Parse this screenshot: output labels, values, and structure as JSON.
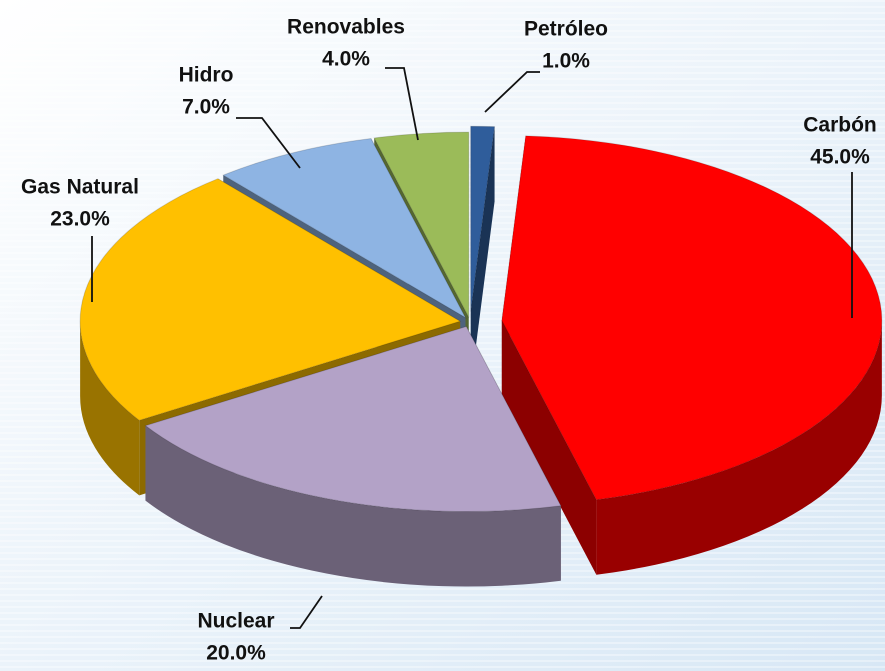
{
  "chart_data": {
    "type": "pie",
    "categories": [
      "Petróleo",
      "Carbón",
      "Nuclear",
      "Gas Natural",
      "Hidro",
      "Renovables"
    ],
    "values": [
      1,
      45,
      20,
      23,
      7,
      4
    ],
    "value_labels": [
      "1.0%",
      "45.0%",
      "20.0%",
      "23.0%",
      "7.0%",
      "4.0%"
    ],
    "colors": [
      "#2f5d9b",
      "#ff0000",
      "#b3a2c7",
      "#ffc000",
      "#8eb4e3",
      "#9bbb59"
    ]
  }
}
